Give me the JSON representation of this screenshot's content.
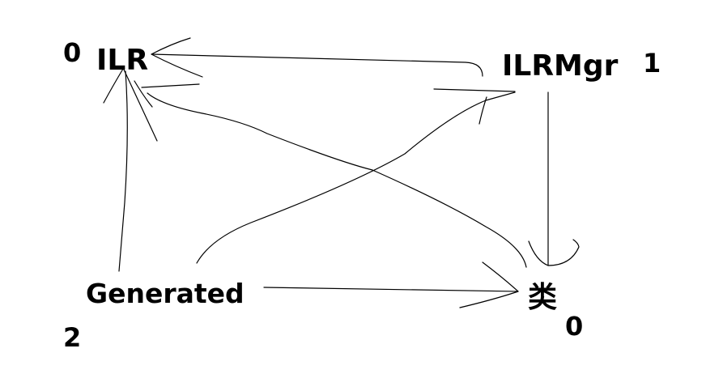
{
  "nodes": {
    "ilr": {
      "label": "ILR",
      "count": "0"
    },
    "ilrmgr": {
      "label": "ILRMgr",
      "count": "1"
    },
    "generated": {
      "label": "Generated",
      "count": "2"
    },
    "lei": {
      "label": "类",
      "count": "0"
    }
  },
  "edges": [
    {
      "from": "ilrmgr",
      "to": "ilr"
    },
    {
      "from": "generated",
      "to": "ilr"
    },
    {
      "from": "generated",
      "to": "ilrmgr"
    },
    {
      "from": "generated",
      "to": "lei"
    },
    {
      "from": "ilrmgr",
      "to": "lei"
    },
    {
      "from": "ilr",
      "to": "lei"
    }
  ],
  "colors": {
    "ink": "#000000",
    "background": "#ffffff"
  }
}
